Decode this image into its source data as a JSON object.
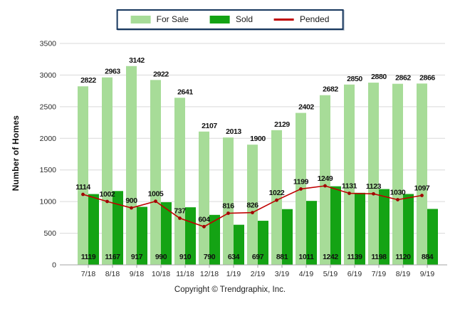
{
  "legend": {
    "items": [
      {
        "label": "For Sale"
      },
      {
        "label": "Sold"
      },
      {
        "label": "Pended"
      }
    ]
  },
  "chart": {
    "ylabel": "Number of Homes",
    "footer": "Copyright © Trendgraphix, Inc."
  },
  "colors": {
    "for_sale": "#A7DC98",
    "sold": "#14A314",
    "pended": "#C00000",
    "pended_marker": "#A00000",
    "grid": "#D9D9D9",
    "axis": "#A6A6A6",
    "legend_border": "#17375E",
    "value_label": "#111111",
    "tick_label": "#2b2b2b"
  },
  "chart_data": {
    "type": "bar",
    "title": "",
    "xlabel": "",
    "ylabel": "Number of Homes",
    "ylim": [
      0,
      3500
    ],
    "ytick_step": 500,
    "yticks": [
      0,
      500,
      1000,
      1500,
      2000,
      2500,
      3000,
      3500
    ],
    "grid": true,
    "legend_position": "top",
    "categories": [
      "7/18",
      "8/18",
      "9/18",
      "10/18",
      "11/18",
      "12/18",
      "1/19",
      "2/19",
      "3/19",
      "4/19",
      "5/19",
      "6/19",
      "7/19",
      "8/19",
      "9/19"
    ],
    "series": [
      {
        "name": "For Sale",
        "kind": "bar",
        "values": [
          2822,
          2963,
          3142,
          2922,
          2641,
          2107,
          2013,
          1900,
          2129,
          2402,
          2682,
          2850,
          2880,
          2862,
          2866
        ]
      },
      {
        "name": "Sold",
        "kind": "bar",
        "values": [
          1119,
          1167,
          917,
          990,
          910,
          790,
          634,
          697,
          881,
          1011,
          1242,
          1139,
          1198,
          1120,
          884
        ]
      },
      {
        "name": "Pended",
        "kind": "line",
        "values": [
          1114,
          1002,
          900,
          1005,
          737,
          604,
          816,
          826,
          1022,
          1199,
          1249,
          1131,
          1123,
          1030,
          1097
        ]
      }
    ]
  }
}
